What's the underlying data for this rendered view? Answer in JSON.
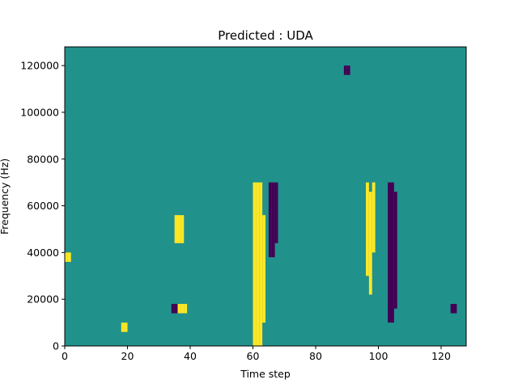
{
  "chart_data": {
    "type": "heatmap",
    "title": "Predicted : UDA",
    "xlabel": "Time step",
    "ylabel": "Frequency (Hz)",
    "xlim": [
      0,
      128
    ],
    "ylim": [
      0,
      128000
    ],
    "xticks": [
      0,
      20,
      40,
      60,
      80,
      100,
      120
    ],
    "yticks": [
      0,
      20000,
      40000,
      60000,
      80000,
      100000,
      120000
    ],
    "grid": false,
    "legend": "none",
    "n_time_steps": 128,
    "n_freq_bins": 64,
    "bin_height_hz": 2000,
    "colormap": {
      "background_class": "#21918c",
      "low_class": "#440154",
      "high_class": "#fde725"
    },
    "cell_classes": {
      "background": 0,
      "low": 1,
      "high": 2
    },
    "sparse_cells": [
      {
        "x": 60,
        "y0": 0,
        "y1": 70000,
        "class": "high"
      },
      {
        "x": 61,
        "y0": 0,
        "y1": 70000,
        "class": "high"
      },
      {
        "x": 62,
        "y0": 0,
        "y1": 70000,
        "class": "high"
      },
      {
        "x": 63,
        "y0": 10000,
        "y1": 56000,
        "class": "high"
      },
      {
        "x": 65,
        "y0": 38000,
        "y1": 70000,
        "class": "low"
      },
      {
        "x": 66,
        "y0": 38000,
        "y1": 70000,
        "class": "low"
      },
      {
        "x": 67,
        "y0": 44000,
        "y1": 70000,
        "class": "low"
      },
      {
        "x": 96,
        "y0": 30000,
        "y1": 70000,
        "class": "high"
      },
      {
        "x": 97,
        "y0": 22000,
        "y1": 66000,
        "class": "high"
      },
      {
        "x": 98,
        "y0": 40000,
        "y1": 70000,
        "class": "high"
      },
      {
        "x": 103,
        "y0": 10000,
        "y1": 70000,
        "class": "low"
      },
      {
        "x": 104,
        "y0": 10000,
        "y1": 70000,
        "class": "low"
      },
      {
        "x": 105,
        "y0": 16000,
        "y1": 66000,
        "class": "low"
      },
      {
        "x": 34,
        "y0": 14000,
        "y1": 18000,
        "class": "low"
      },
      {
        "x": 35,
        "y0": 14000,
        "y1": 18000,
        "class": "low"
      },
      {
        "x": 36,
        "y0": 14000,
        "y1": 18000,
        "class": "high"
      },
      {
        "x": 37,
        "y0": 14000,
        "y1": 18000,
        "class": "high"
      },
      {
        "x": 38,
        "y0": 14000,
        "y1": 18000,
        "class": "high"
      },
      {
        "x": 35,
        "y0": 44000,
        "y1": 56000,
        "class": "high"
      },
      {
        "x": 36,
        "y0": 44000,
        "y1": 56000,
        "class": "high"
      },
      {
        "x": 37,
        "y0": 44000,
        "y1": 56000,
        "class": "high"
      },
      {
        "x": 18,
        "y0": 6000,
        "y1": 10000,
        "class": "high"
      },
      {
        "x": 19,
        "y0": 6000,
        "y1": 10000,
        "class": "high"
      },
      {
        "x": 0,
        "y0": 36000,
        "y1": 40000,
        "class": "high"
      },
      {
        "x": 1,
        "y0": 36000,
        "y1": 40000,
        "class": "high"
      },
      {
        "x": 89,
        "y0": 116000,
        "y1": 120000,
        "class": "low"
      },
      {
        "x": 90,
        "y0": 116000,
        "y1": 120000,
        "class": "low"
      },
      {
        "x": 123,
        "y0": 14000,
        "y1": 18000,
        "class": "low"
      },
      {
        "x": 124,
        "y0": 14000,
        "y1": 18000,
        "class": "low"
      }
    ]
  }
}
